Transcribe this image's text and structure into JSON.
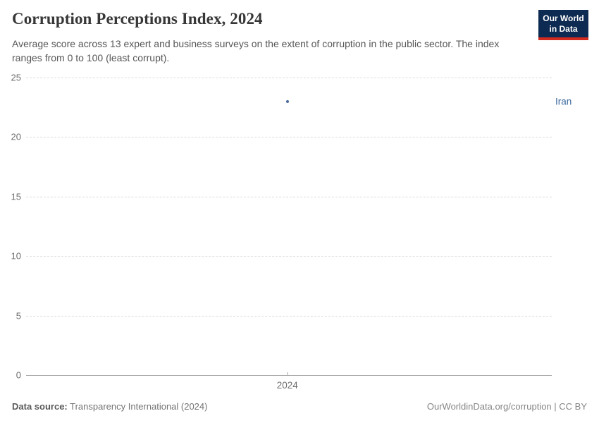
{
  "header": {
    "title": "Corruption Perceptions Index, 2024",
    "subtitle": "Average score across 13 expert and business surveys on the extent of corruption in the public sector. The index ranges from 0 to 100 (least corrupt)."
  },
  "logo": {
    "line1": "Our World",
    "line2": "in Data",
    "bg_color": "#0d2a52",
    "bar_color": "#d32b20"
  },
  "chart_data": {
    "type": "scatter",
    "title": "Corruption Perceptions Index, 2024",
    "x": [
      2024
    ],
    "x_tick_labels": [
      "2024"
    ],
    "series": [
      {
        "name": "Iran",
        "values": [
          23
        ],
        "color": "#4c6a9c",
        "label_color": "#3d6a9e"
      }
    ],
    "y_ticks": [
      0,
      5,
      10,
      15,
      20,
      25
    ],
    "ylim": [
      0,
      25
    ],
    "xlabel": "",
    "ylabel": "",
    "grid": "horizontal-dashed",
    "legend_position": "entity-label-right"
  },
  "footer": {
    "source_label": "Data source:",
    "source_value": " Transparency International (2024)",
    "rights": "OurWorldinData.org/corruption | CC BY"
  }
}
